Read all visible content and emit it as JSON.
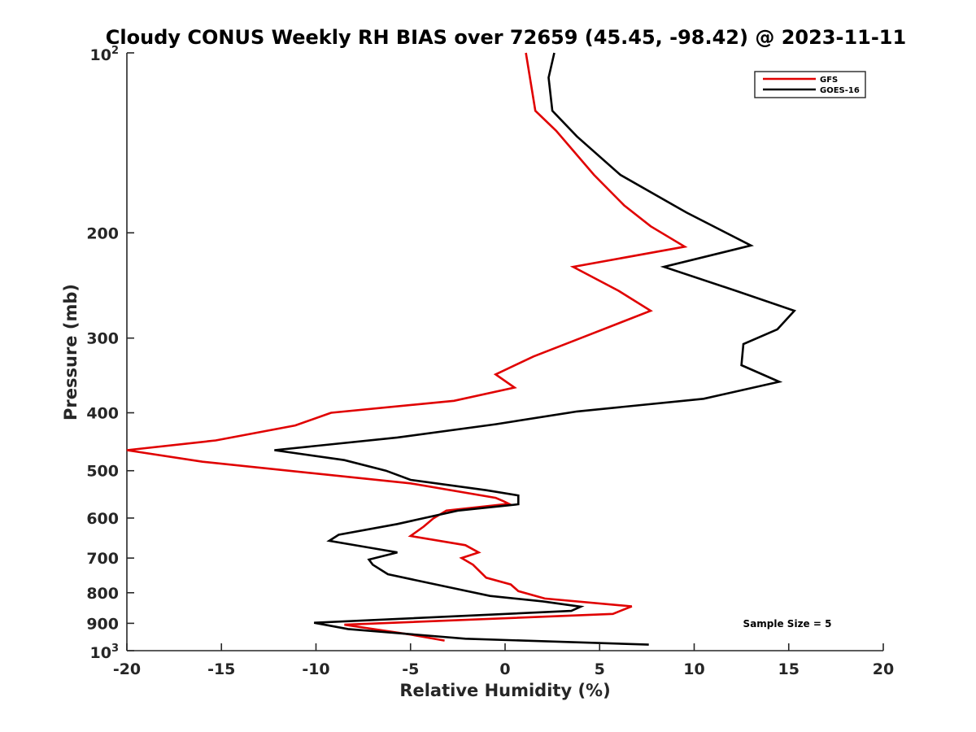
{
  "chart_data": {
    "type": "line",
    "title": "Cloudy CONUS Weekly RH BIAS over 72659 (45.45, -98.42) @ 2023-11-11",
    "xlabel": "Relative Humidity (%)",
    "ylabel": "Pressure (mb)",
    "xlim": [
      -20,
      20
    ],
    "ylim": [
      100,
      1000
    ],
    "yscale": "log",
    "y_reversed": true,
    "grid": false,
    "legend_position": "top-right",
    "x_ticks": [
      -20,
      -15,
      -10,
      -5,
      0,
      5,
      10,
      15,
      20
    ],
    "x_tick_labels": [
      "-20",
      "-15",
      "-10",
      "-5",
      "0",
      "5",
      "10",
      "15",
      "20"
    ],
    "y_ticks": [
      200,
      300,
      400,
      500,
      600,
      700,
      800,
      900
    ],
    "y_tick_labels": [
      "200",
      "300",
      "400",
      "500",
      "600",
      "700",
      "800",
      "900"
    ],
    "y_decade_ticks": [
      {
        "value": 100,
        "base": "10",
        "exponent": "2"
      },
      {
        "value": 1000,
        "base": "10",
        "exponent": "3"
      }
    ],
    "annotation": "Sample Size = 5",
    "series": [
      {
        "name": "GFS",
        "color": "#e00000",
        "points": [
          [
            1.1,
            100
          ],
          [
            1.6,
            125
          ],
          [
            2.7,
            135
          ],
          [
            4.7,
            160
          ],
          [
            6.3,
            180
          ],
          [
            7.7,
            195
          ],
          [
            9.5,
            211
          ],
          [
            3.6,
            228
          ],
          [
            6.0,
            250
          ],
          [
            7.7,
            270
          ],
          [
            4.0,
            300
          ],
          [
            1.5,
            322
          ],
          [
            -0.5,
            345
          ],
          [
            0.5,
            363
          ],
          [
            -2.7,
            382
          ],
          [
            -9.2,
            400
          ],
          [
            -11.1,
            420
          ],
          [
            -15.3,
            445
          ],
          [
            -20.0,
            462
          ],
          [
            -16.0,
            483
          ],
          [
            -5.0,
            525
          ],
          [
            -0.5,
            555
          ],
          [
            -0.1,
            562
          ],
          [
            0.2,
            568
          ],
          [
            -3.1,
            583
          ],
          [
            -3.8,
            601
          ],
          [
            -4.3,
            620
          ],
          [
            -5.0,
            643
          ],
          [
            -2.1,
            666
          ],
          [
            -1.4,
            685
          ],
          [
            -2.3,
            700
          ],
          [
            -1.7,
            718
          ],
          [
            -1.0,
            755
          ],
          [
            0.3,
            775
          ],
          [
            0.7,
            795
          ],
          [
            2.1,
            818
          ],
          [
            6.7,
            843
          ],
          [
            5.7,
            868
          ],
          [
            -8.5,
            905
          ],
          [
            -5.0,
            940
          ],
          [
            -3.2,
            962
          ]
        ]
      },
      {
        "name": "GOES-16",
        "color": "#000000",
        "points": [
          [
            2.6,
            100
          ],
          [
            2.3,
            110
          ],
          [
            2.5,
            125
          ],
          [
            3.8,
            138
          ],
          [
            6.1,
            160
          ],
          [
            9.6,
            185
          ],
          [
            13.0,
            210
          ],
          [
            8.4,
            228
          ],
          [
            12.2,
            250
          ],
          [
            15.3,
            270
          ],
          [
            14.4,
            290
          ],
          [
            12.6,
            307
          ],
          [
            12.5,
            333
          ],
          [
            14.5,
            355
          ],
          [
            10.5,
            379
          ],
          [
            3.8,
            398
          ],
          [
            -0.5,
            418
          ],
          [
            -5.7,
            440
          ],
          [
            -12.2,
            462
          ],
          [
            -8.5,
            480
          ],
          [
            -6.3,
            500
          ],
          [
            -5.0,
            518
          ],
          [
            -1.0,
            539
          ],
          [
            0.7,
            550
          ],
          [
            0.7,
            569
          ],
          [
            -2.5,
            583
          ],
          [
            -5.7,
            614
          ],
          [
            -8.8,
            640
          ],
          [
            -9.3,
            655
          ],
          [
            -7.1,
            673
          ],
          [
            -5.7,
            685
          ],
          [
            -7.2,
            704
          ],
          [
            -7.0,
            718
          ],
          [
            -6.2,
            745
          ],
          [
            -3.0,
            783
          ],
          [
            -0.8,
            810
          ],
          [
            2.0,
            827
          ],
          [
            4.0,
            844
          ],
          [
            3.5,
            858
          ],
          [
            -10.1,
            898
          ],
          [
            -8.3,
            920
          ],
          [
            -2.1,
            955
          ],
          [
            7.6,
            977
          ]
        ]
      }
    ]
  }
}
